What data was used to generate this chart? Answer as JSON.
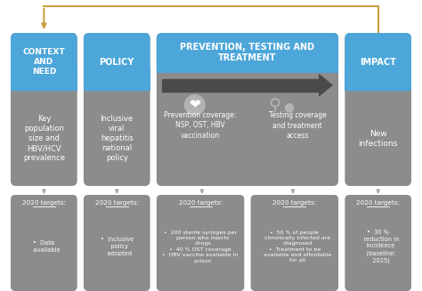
{
  "background_color": "#ffffff",
  "blue_color": "#4da6d9",
  "gray_color": "#8c8c8c",
  "light_gray": "#b3b3b3",
  "dark_arrow_color": "#4a4a4a",
  "gold_arrow_color": "#c8a040",
  "white": "#ffffff",
  "col0_header": "CONTEXT\nAND\nNEED",
  "col0_body": "Key\npopulation\nsize and\nHBV/HCV\nprevalence",
  "col0_tgt_body": "•  Data\n   available",
  "col1_header": "POLICY",
  "col1_body": "Inclusive\nviral\nhepatitis\nnational\npolicy",
  "col1_tgt_body": "•  Inclusive\n   policy\n   adopted",
  "col2_header": "PREVENTION, TESTING AND\nTREATMENT",
  "col2a_body": "Prevention coverage:\nNSP, OST, HBV\nvaccination",
  "col2b_body": "Testing coverage\nand treatment\naccess",
  "col2a_tgt_body": "•  200 sterile syringes per\n   person who injects\n   drugs\n•  40 % OST coverage\n•  HBV vaccine available in\n   prison",
  "col2b_tgt_body": "•  50 % of people\n   chronically infected are\n   diagnosed\n•  Treatment to be\n   available and affordable\n   for all",
  "col3_header": "IMPACT",
  "col3_body": "New\ninfections",
  "col3_tgt_body": "•  30 %\n   reduction in\n   incidence\n   (baseline:\n   2015)",
  "tgt_header": "2020 targets:"
}
